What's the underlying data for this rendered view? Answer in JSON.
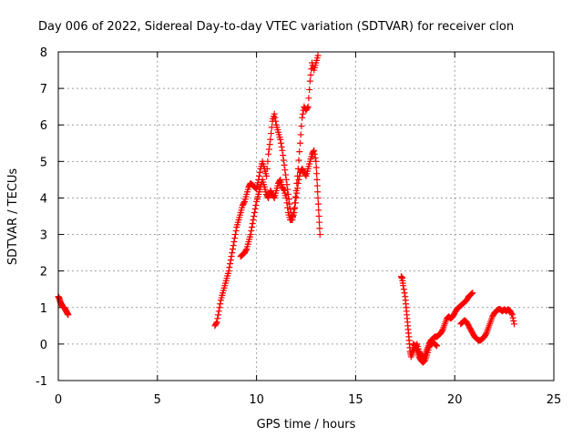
{
  "chart_data": {
    "type": "scatter",
    "title": "Day 006 of 2022, Sidereal Day-to-day VTEC variation (SDTVAR) for receiver clon",
    "xlabel": "GPS time / hours",
    "ylabel": "SDTVAR / TECUs",
    "xlim": [
      0,
      25
    ],
    "ylim": [
      -1,
      8
    ],
    "xticks": [
      0,
      5,
      10,
      15,
      20,
      25
    ],
    "yticks": [
      -1,
      0,
      1,
      2,
      3,
      4,
      5,
      6,
      7,
      8
    ],
    "grid": true,
    "marker": "+",
    "marker_color": "#ff0000",
    "series": [
      {
        "name": "SDTVAR",
        "segments": [
          [
            [
              0.0,
              1.3
            ],
            [
              0.05,
              1.25
            ],
            [
              0.1,
              1.15
            ],
            [
              0.15,
              1.1
            ],
            [
              0.2,
              1.05
            ],
            [
              0.25,
              1.0
            ],
            [
              0.3,
              1.0
            ],
            [
              0.35,
              0.95
            ],
            [
              0.4,
              0.9
            ],
            [
              0.45,
              0.85
            ],
            [
              0.5,
              0.8
            ]
          ],
          [
            [
              7.9,
              0.5
            ],
            [
              8.0,
              0.6
            ],
            [
              8.1,
              0.9
            ],
            [
              8.2,
              1.2
            ],
            [
              8.3,
              1.4
            ],
            [
              8.4,
              1.6
            ],
            [
              8.5,
              1.8
            ],
            [
              8.6,
              2.0
            ],
            [
              8.7,
              2.3
            ],
            [
              8.8,
              2.6
            ],
            [
              8.9,
              2.9
            ],
            [
              9.0,
              3.2
            ],
            [
              9.1,
              3.4
            ],
            [
              9.2,
              3.6
            ],
            [
              9.3,
              3.8
            ],
            [
              9.4,
              3.9
            ],
            [
              9.5,
              4.1
            ],
            [
              9.6,
              4.3
            ],
            [
              9.7,
              4.4
            ],
            [
              9.8,
              4.35
            ],
            [
              9.9,
              4.3
            ],
            [
              10.0,
              4.25
            ],
            [
              10.1,
              4.5
            ],
            [
              10.2,
              4.8
            ],
            [
              10.3,
              5.0
            ],
            [
              10.4,
              4.8
            ],
            [
              10.5,
              4.6
            ],
            [
              10.6,
              5.2
            ],
            [
              10.7,
              5.6
            ],
            [
              10.8,
              6.1
            ],
            [
              10.9,
              6.3
            ],
            [
              11.0,
              6.0
            ],
            [
              11.1,
              5.8
            ],
            [
              11.2,
              5.6
            ],
            [
              11.3,
              5.3
            ],
            [
              11.4,
              4.9
            ],
            [
              11.5,
              4.5
            ],
            [
              11.6,
              4.1
            ],
            [
              11.7,
              3.7
            ],
            [
              11.8,
              3.4
            ],
            [
              11.9,
              3.7
            ],
            [
              12.0,
              4.2
            ],
            [
              12.1,
              4.8
            ],
            [
              12.2,
              5.5
            ],
            [
              12.3,
              6.2
            ],
            [
              12.4,
              6.5
            ],
            [
              12.5,
              6.4
            ],
            [
              12.6,
              6.5
            ],
            [
              12.7,
              7.2
            ],
            [
              12.8,
              7.7
            ],
            [
              12.9,
              7.5
            ],
            [
              13.0,
              7.7
            ],
            [
              13.1,
              7.9
            ]
          ],
          [
            [
              9.2,
              2.4
            ],
            [
              9.3,
              2.45
            ],
            [
              9.4,
              2.5
            ],
            [
              9.5,
              2.6
            ],
            [
              9.6,
              2.8
            ],
            [
              9.7,
              3.0
            ],
            [
              9.8,
              3.3
            ],
            [
              9.9,
              3.6
            ],
            [
              10.0,
              3.9
            ],
            [
              10.1,
              4.1
            ],
            [
              10.2,
              4.3
            ],
            [
              10.3,
              4.5
            ],
            [
              10.4,
              4.3
            ],
            [
              10.5,
              4.1
            ],
            [
              10.6,
              4.0
            ],
            [
              10.7,
              4.2
            ],
            [
              10.8,
              4.1
            ],
            [
              10.9,
              4.0
            ],
            [
              11.0,
              4.2
            ],
            [
              11.1,
              4.4
            ],
            [
              11.2,
              4.5
            ],
            [
              11.3,
              4.3
            ],
            [
              11.4,
              4.2
            ],
            [
              11.5,
              4.0
            ],
            [
              11.6,
              3.6
            ],
            [
              11.7,
              3.4
            ],
            [
              11.8,
              3.4
            ],
            [
              11.9,
              3.6
            ],
            [
              12.0,
              4.0
            ],
            [
              12.1,
              4.4
            ],
            [
              12.2,
              4.7
            ],
            [
              12.3,
              4.8
            ],
            [
              12.4,
              4.7
            ],
            [
              12.5,
              4.6
            ],
            [
              12.6,
              4.8
            ],
            [
              12.7,
              5.0
            ],
            [
              12.8,
              5.2
            ],
            [
              12.9,
              5.3
            ],
            [
              13.0,
              5.0
            ],
            [
              13.05,
              4.5
            ],
            [
              13.1,
              4.0
            ],
            [
              13.15,
              3.5
            ],
            [
              13.2,
              3.0
            ]
          ],
          [
            [
              17.3,
              1.85
            ],
            [
              17.35,
              1.8
            ],
            [
              17.4,
              1.6
            ],
            [
              17.5,
              1.3
            ],
            [
              17.55,
              1.0
            ],
            [
              17.6,
              0.7
            ],
            [
              17.65,
              0.4
            ],
            [
              17.7,
              0.1
            ],
            [
              17.75,
              -0.2
            ],
            [
              17.8,
              -0.35
            ],
            [
              17.9,
              -0.2
            ],
            [
              18.0,
              -0.1
            ],
            [
              18.1,
              0.0
            ],
            [
              18.2,
              -0.2
            ],
            [
              18.3,
              -0.3
            ],
            [
              18.4,
              -0.4
            ],
            [
              18.5,
              -0.3
            ],
            [
              18.6,
              -0.15
            ],
            [
              18.7,
              0.0
            ],
            [
              18.8,
              0.1
            ],
            [
              18.9,
              0.15
            ],
            [
              19.0,
              0.2
            ],
            [
              19.1,
              0.2
            ],
            [
              19.2,
              0.25
            ],
            [
              19.3,
              0.3
            ],
            [
              19.4,
              0.4
            ],
            [
              19.5,
              0.55
            ],
            [
              19.6,
              0.7
            ],
            [
              19.7,
              0.75
            ],
            [
              19.8,
              0.7
            ],
            [
              19.9,
              0.75
            ],
            [
              20.0,
              0.85
            ],
            [
              20.1,
              0.95
            ],
            [
              20.2,
              1.0
            ],
            [
              20.3,
              1.05
            ],
            [
              20.4,
              1.1
            ],
            [
              20.5,
              1.15
            ],
            [
              20.6,
              1.2
            ],
            [
              20.7,
              1.3
            ],
            [
              20.8,
              1.35
            ],
            [
              20.9,
              1.4
            ]
          ],
          [
            [
              17.9,
              0.0
            ],
            [
              18.0,
              -0.05
            ],
            [
              18.1,
              -0.2
            ],
            [
              18.2,
              -0.35
            ],
            [
              18.3,
              -0.45
            ],
            [
              18.4,
              -0.5
            ],
            [
              18.5,
              -0.45
            ],
            [
              18.6,
              -0.3
            ],
            [
              18.7,
              -0.1
            ],
            [
              18.8,
              0.0
            ],
            [
              18.9,
              0.05
            ],
            [
              19.0,
              0.0
            ],
            [
              19.1,
              -0.05
            ]
          ],
          [
            [
              20.3,
              0.55
            ],
            [
              20.4,
              0.6
            ],
            [
              20.5,
              0.65
            ],
            [
              20.6,
              0.6
            ],
            [
              20.7,
              0.5
            ],
            [
              20.8,
              0.4
            ],
            [
              20.9,
              0.3
            ],
            [
              21.0,
              0.2
            ],
            [
              21.1,
              0.15
            ],
            [
              21.2,
              0.1
            ],
            [
              21.3,
              0.1
            ],
            [
              21.4,
              0.15
            ],
            [
              21.5,
              0.2
            ],
            [
              21.6,
              0.3
            ],
            [
              21.7,
              0.45
            ],
            [
              21.8,
              0.6
            ],
            [
              21.9,
              0.75
            ],
            [
              22.0,
              0.85
            ],
            [
              22.1,
              0.9
            ],
            [
              22.2,
              0.95
            ],
            [
              22.3,
              0.95
            ],
            [
              22.4,
              0.9
            ],
            [
              22.5,
              0.95
            ],
            [
              22.6,
              0.9
            ],
            [
              22.7,
              0.95
            ],
            [
              22.8,
              0.9
            ],
            [
              22.9,
              0.8
            ],
            [
              23.0,
              0.55
            ]
          ]
        ]
      }
    ]
  }
}
